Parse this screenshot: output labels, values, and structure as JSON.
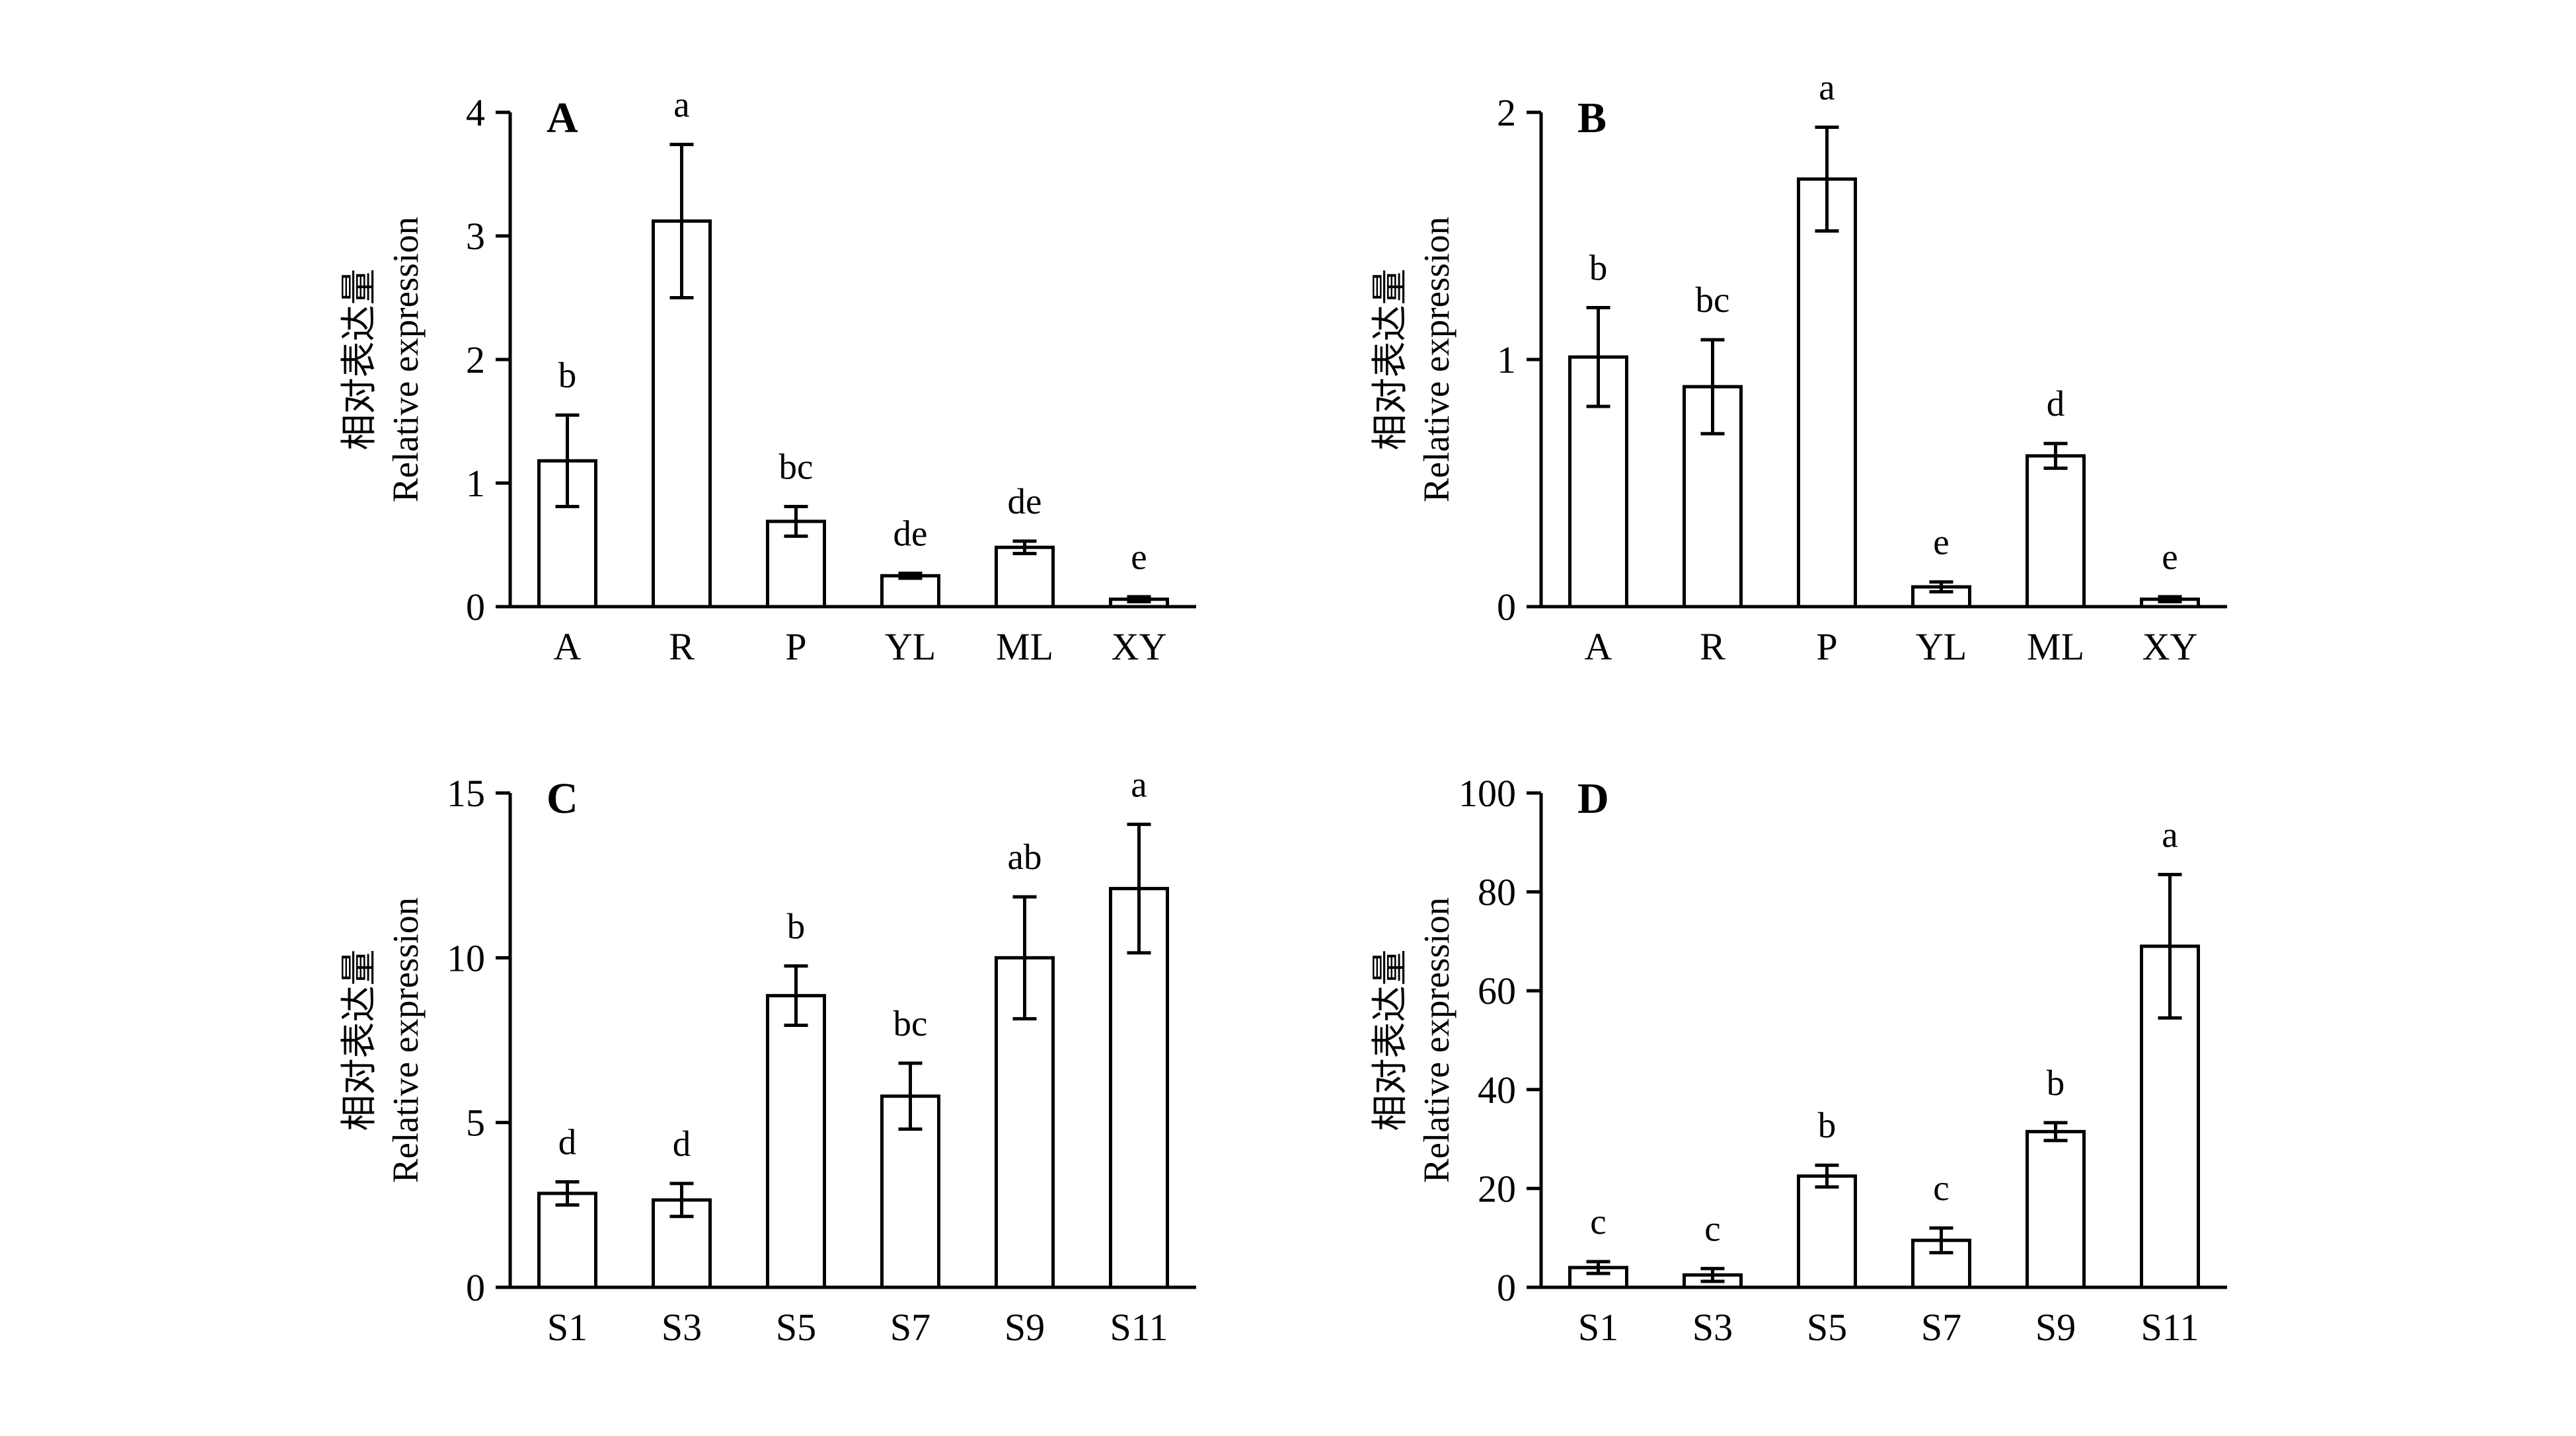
{
  "chart_data": [
    {
      "type": "bar",
      "panel": "A",
      "categories": [
        "A",
        "R",
        "P",
        "YL",
        "ML",
        "XY"
      ],
      "values": [
        1.18,
        3.12,
        0.69,
        0.25,
        0.48,
        0.06
      ],
      "errors": [
        0.37,
        0.62,
        0.12,
        0.02,
        0.05,
        0.02
      ],
      "significance": [
        "b",
        "a",
        "bc",
        "de",
        "de",
        "e"
      ],
      "ylabel_cn": "相对表达量",
      "ylabel_en": "Relative expression",
      "yticks": [
        0,
        1,
        2,
        3,
        4
      ],
      "ylim": [
        0,
        4
      ]
    },
    {
      "type": "bar",
      "panel": "B",
      "categories": [
        "A",
        "R",
        "P",
        "YL",
        "ML",
        "XY"
      ],
      "values": [
        1.01,
        0.89,
        1.73,
        0.08,
        0.61,
        0.03
      ],
      "errors": [
        0.2,
        0.19,
        0.21,
        0.02,
        0.05,
        0.01
      ],
      "significance": [
        "b",
        "bc",
        "a",
        "e",
        "d",
        "e"
      ],
      "ylabel_cn": "相对表达量",
      "ylabel_en": "Relative expression",
      "yticks": [
        0,
        1,
        2
      ],
      "ylim": [
        0,
        2
      ]
    },
    {
      "type": "bar",
      "panel": "C",
      "categories": [
        "S1",
        "S3",
        "S5",
        "S7",
        "S9",
        "S11"
      ],
      "values": [
        2.85,
        2.65,
        8.85,
        5.8,
        10.0,
        12.1
      ],
      "errors": [
        0.35,
        0.5,
        0.9,
        1.0,
        1.85,
        1.95
      ],
      "significance": [
        "d",
        "d",
        "b",
        "bc",
        "ab",
        "a"
      ],
      "ylabel_cn": "相对表达量",
      "ylabel_en": "Relative expression",
      "yticks": [
        0,
        5,
        10,
        15
      ],
      "ylim": [
        0,
        15
      ]
    },
    {
      "type": "bar",
      "panel": "D",
      "categories": [
        "S1",
        "S3",
        "S5",
        "S7",
        "S9",
        "S11"
      ],
      "values": [
        4.0,
        2.5,
        22.5,
        9.5,
        31.5,
        69.0
      ],
      "errors": [
        1.2,
        1.3,
        2.2,
        2.5,
        1.8,
        14.5
      ],
      "significance": [
        "c",
        "c",
        "b",
        "c",
        "b",
        "a"
      ],
      "ylabel_cn": "相对表达量",
      "ylabel_en": "Relative expression",
      "yticks": [
        0,
        20,
        40,
        60,
        80,
        100
      ],
      "ylim": [
        0,
        100
      ]
    }
  ]
}
